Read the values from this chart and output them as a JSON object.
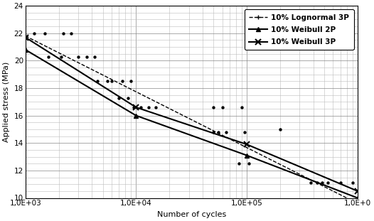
{
  "title": "",
  "xlabel": "Number of cycles",
  "ylabel": "Applied stress (MPa)",
  "ylim": [
    10,
    24
  ],
  "yticks": [
    10,
    12,
    14,
    16,
    18,
    20,
    22,
    24
  ],
  "background_color": "#ffffff",
  "scatter_points": [
    [
      1200,
      22.0
    ],
    [
      1500,
      22.0
    ],
    [
      2200,
      22.0
    ],
    [
      2600,
      22.0
    ],
    [
      1600,
      20.3
    ],
    [
      2100,
      20.3
    ],
    [
      3000,
      20.3
    ],
    [
      3600,
      20.3
    ],
    [
      4200,
      20.3
    ],
    [
      4500,
      18.5
    ],
    [
      5500,
      18.5
    ],
    [
      6000,
      18.5
    ],
    [
      7500,
      18.5
    ],
    [
      9000,
      18.5
    ],
    [
      7000,
      17.3
    ],
    [
      8500,
      17.3
    ],
    [
      9500,
      16.6
    ],
    [
      11000,
      16.6
    ],
    [
      13000,
      16.6
    ],
    [
      15000,
      16.6
    ],
    [
      50000,
      16.6
    ],
    [
      60000,
      16.6
    ],
    [
      90000,
      16.6
    ],
    [
      50000,
      14.8
    ],
    [
      55000,
      14.8
    ],
    [
      65000,
      14.8
    ],
    [
      95000,
      14.8
    ],
    [
      200000,
      15.0
    ],
    [
      85000,
      12.5
    ],
    [
      105000,
      12.5
    ],
    [
      380000,
      11.1
    ],
    [
      430000,
      11.1
    ],
    [
      480000,
      11.1
    ],
    [
      540000,
      11.1
    ],
    [
      700000,
      11.1
    ],
    [
      900000,
      11.1
    ]
  ],
  "lognormal_3p": {
    "x": [
      1000,
      1000000
    ],
    "y": [
      21.8,
      9.6
    ],
    "label": "10% Lognormal 3P",
    "linewidth": 1.0
  },
  "weibull_2p": {
    "x": [
      1000,
      10000,
      100000,
      1000000
    ],
    "y": [
      20.8,
      16.0,
      13.1,
      10.0
    ],
    "label": "10% Weibull 2P",
    "linewidth": 1.5
  },
  "weibull_3p": {
    "x": [
      1000,
      10000,
      100000,
      1000000
    ],
    "y": [
      21.7,
      16.6,
      13.9,
      10.5
    ],
    "label": "10% Weibull 3P",
    "linewidth": 1.5
  }
}
